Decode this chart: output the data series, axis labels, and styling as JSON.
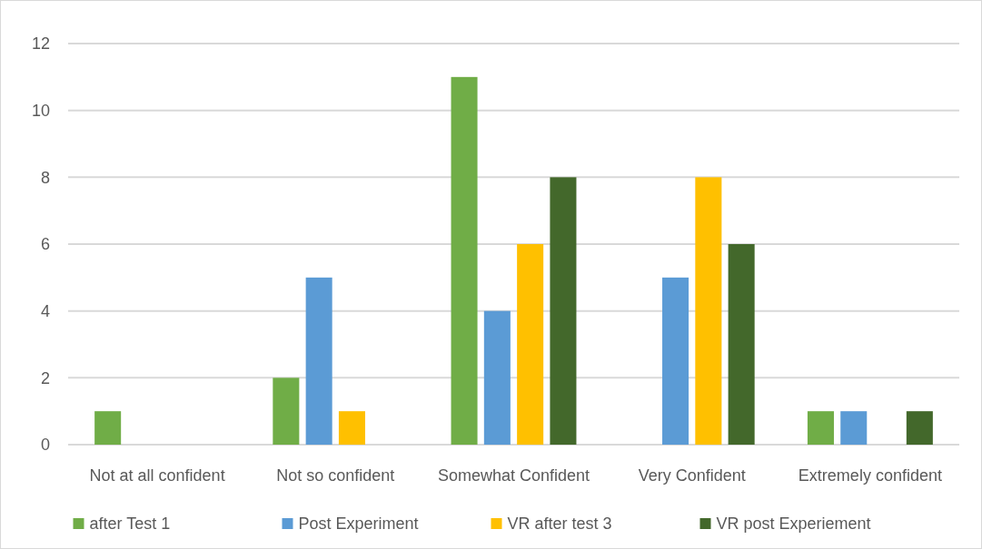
{
  "chart_data": {
    "type": "bar",
    "categories": [
      "Not at all confident",
      "Not so confident",
      "Somewhat Confident",
      "Very Confident",
      "Extremely confident"
    ],
    "series": [
      {
        "name": "after Test 1",
        "color": "#70ad47",
        "values": [
          1,
          2,
          11,
          0,
          1
        ]
      },
      {
        "name": "Post Experiment",
        "color": "#5b9bd5",
        "values": [
          0,
          5,
          4,
          5,
          1
        ]
      },
      {
        "name": "VR after test 3",
        "color": "#ffc000",
        "values": [
          0,
          1,
          6,
          8,
          0
        ]
      },
      {
        "name": "VR post Experiement",
        "color": "#43682b",
        "values": [
          0,
          0,
          8,
          6,
          1
        ]
      }
    ],
    "ylim": [
      0,
      12
    ],
    "yticks": [
      0,
      2,
      4,
      6,
      8,
      10,
      12
    ],
    "grid": "y",
    "legend": "bottom"
  }
}
